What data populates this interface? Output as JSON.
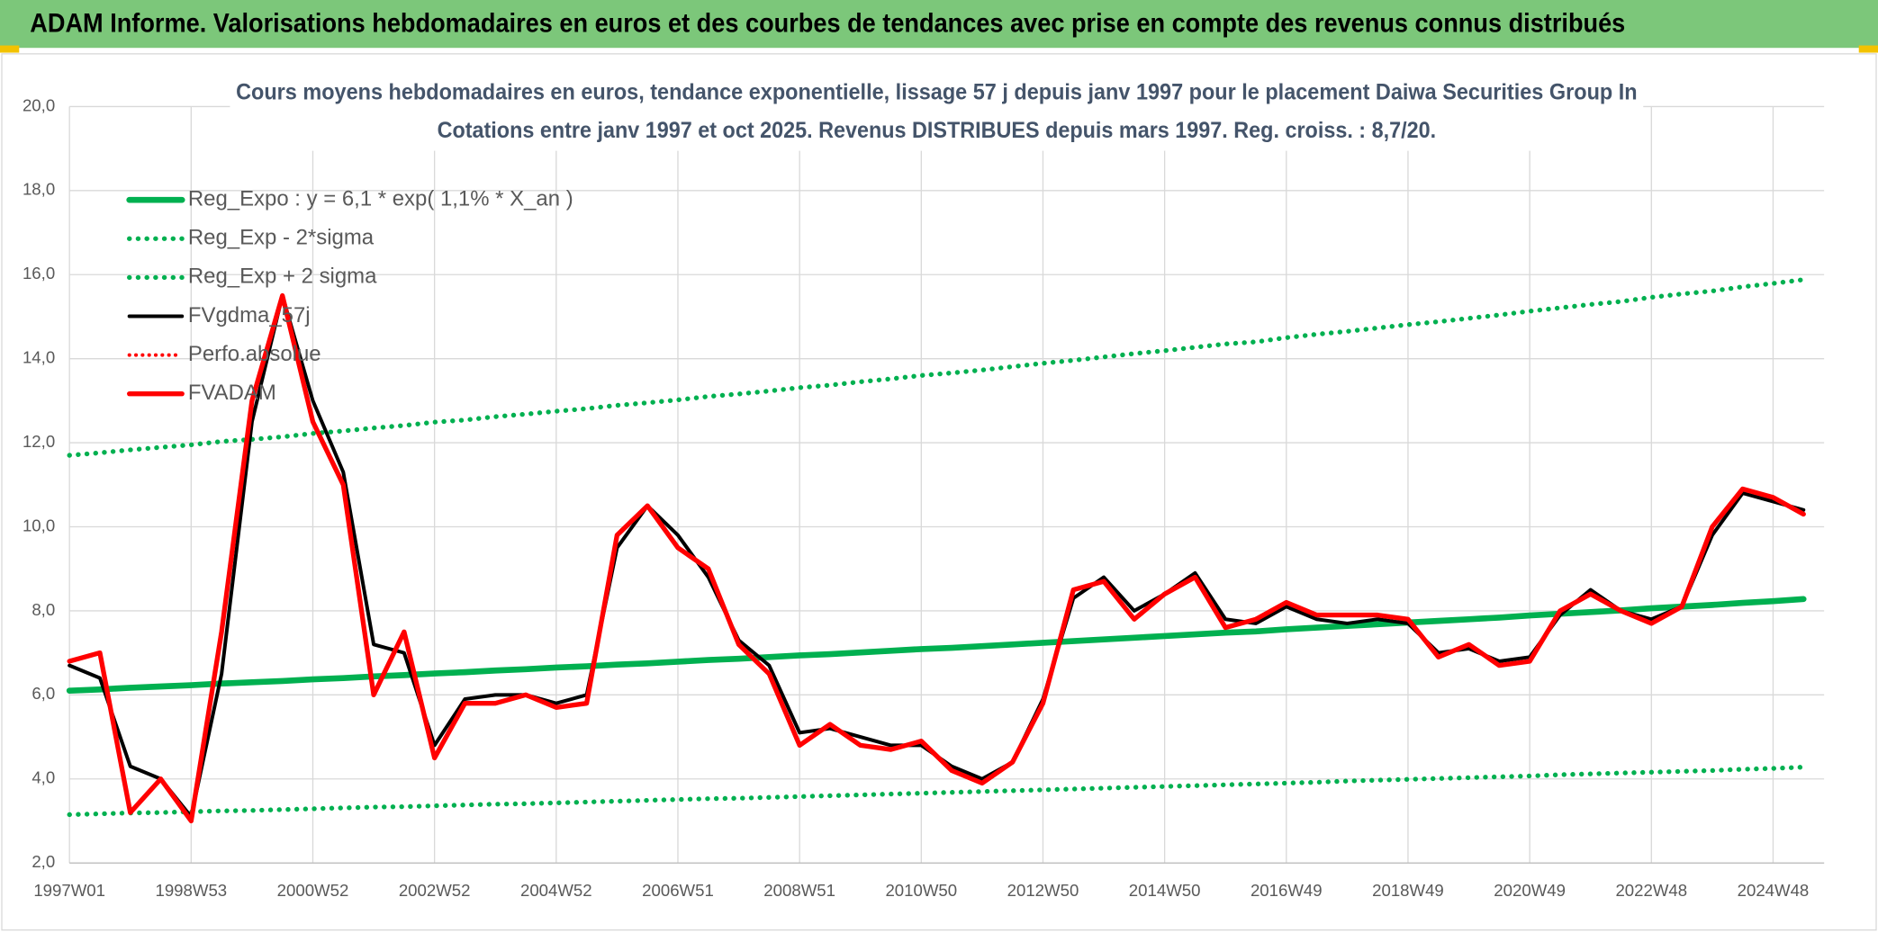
{
  "header": {
    "title": "ADAM Informe. Valorisations hebdomadaires en euros et des courbes de tendances avec prise en compte des revenus connus distribués"
  },
  "chart_data": {
    "type": "line",
    "title": "Cours moyens hebdomadaires en euros, tendance exponentielle, lissage 57 j depuis janv 1997 pour le placement Daiwa Securities Group In",
    "subtitle": "Cotations entre janv 1997 et oct 2025. Revenus DISTRIBUES depuis mars 1997. Reg. croiss. : 8,7/20.",
    "categories": [
      "1997W01",
      null,
      null,
      null,
      "1998W53",
      null,
      null,
      null,
      "2000W52",
      null,
      null,
      null,
      "2002W52",
      null,
      null,
      null,
      "2004W52",
      null,
      null,
      null,
      "2006W51",
      null,
      null,
      null,
      "2008W51",
      null,
      null,
      null,
      "2010W50",
      null,
      null,
      null,
      "2012W50",
      null,
      null,
      null,
      "2014W50",
      null,
      null,
      null,
      "2016W49",
      null,
      null,
      null,
      "2018W49",
      null,
      null,
      null,
      "2020W49",
      null,
      null,
      null,
      "2022W48",
      null,
      null,
      null,
      "2024W48",
      null
    ],
    "ylim": [
      2,
      20
    ],
    "yticks": [
      {
        "value": 2,
        "label": "2,0"
      },
      {
        "value": 4,
        "label": "4,0"
      },
      {
        "value": 6,
        "label": "6,0"
      },
      {
        "value": 8,
        "label": "8,0"
      },
      {
        "value": 10,
        "label": "10,0"
      },
      {
        "value": 12,
        "label": "12,0"
      },
      {
        "value": 14,
        "label": "14,0"
      },
      {
        "value": 16,
        "label": "16,0"
      },
      {
        "value": 18,
        "label": "18,0"
      },
      {
        "value": 20,
        "label": "20,0"
      }
    ],
    "grid": true,
    "legend": "top-left",
    "series": [
      {
        "name": "Reg_Expo : y = 6,1 * exp( 1,1% *  X_an )",
        "color": "#00b050",
        "style": "solid",
        "width": 5,
        "values": [
          6.1,
          6.13,
          6.17,
          6.2,
          6.23,
          6.27,
          6.3,
          6.33,
          6.37,
          6.4,
          6.44,
          6.47,
          6.51,
          6.54,
          6.58,
          6.61,
          6.65,
          6.68,
          6.72,
          6.75,
          6.79,
          6.83,
          6.86,
          6.9,
          6.94,
          6.97,
          7.01,
          7.05,
          7.09,
          7.12,
          7.16,
          7.2,
          7.24,
          7.28,
          7.32,
          7.36,
          7.4,
          7.44,
          7.48,
          7.51,
          7.56,
          7.6,
          7.64,
          7.68,
          7.72,
          7.76,
          7.8,
          7.84,
          7.89,
          7.93,
          7.97,
          8.01,
          8.06,
          8.1,
          8.14,
          8.19,
          8.23,
          8.28
        ]
      },
      {
        "name": "Reg_Exp - 2*sigma",
        "color": "#00b050",
        "style": "dotted",
        "width": 4,
        "values": [
          3.15,
          3.17,
          3.19,
          3.2,
          3.22,
          3.24,
          3.25,
          3.27,
          3.29,
          3.31,
          3.33,
          3.34,
          3.36,
          3.38,
          3.4,
          3.41,
          3.43,
          3.45,
          3.47,
          3.49,
          3.51,
          3.53,
          3.54,
          3.56,
          3.58,
          3.6,
          3.62,
          3.64,
          3.66,
          3.68,
          3.7,
          3.72,
          3.74,
          3.76,
          3.78,
          3.8,
          3.82,
          3.84,
          3.86,
          3.88,
          3.9,
          3.92,
          3.95,
          3.97,
          3.99,
          4.01,
          4.03,
          4.05,
          4.07,
          4.1,
          4.12,
          4.14,
          4.16,
          4.18,
          4.2,
          4.23,
          4.25,
          4.28
        ]
      },
      {
        "name": "Reg_Exp + 2 sigma",
        "color": "#00b050",
        "style": "dotted",
        "width": 4,
        "values": [
          11.7,
          11.76,
          11.83,
          11.89,
          11.95,
          12.03,
          12.08,
          12.14,
          12.22,
          12.28,
          12.35,
          12.41,
          12.49,
          12.54,
          12.62,
          12.68,
          12.75,
          12.81,
          12.89,
          12.95,
          13.02,
          13.1,
          13.16,
          13.23,
          13.31,
          13.37,
          13.45,
          13.52,
          13.6,
          13.66,
          13.73,
          13.81,
          13.89,
          13.96,
          14.04,
          14.12,
          14.19,
          14.27,
          14.35,
          14.4,
          14.5,
          14.58,
          14.65,
          14.73,
          14.81,
          14.88,
          14.96,
          15.04,
          15.13,
          15.21,
          15.29,
          15.36,
          15.46,
          15.54,
          15.61,
          15.71,
          15.79,
          15.88
        ]
      },
      {
        "name": "FVgdma_57j",
        "color": "#000000",
        "style": "solid",
        "width": 3,
        "values": [
          6.7,
          6.4,
          4.3,
          4.0,
          3.1,
          6.5,
          12.5,
          15.5,
          13.0,
          11.3,
          7.2,
          7.0,
          4.8,
          5.9,
          6.0,
          6.0,
          5.8,
          6.0,
          9.5,
          10.5,
          9.8,
          8.8,
          7.3,
          6.7,
          5.1,
          5.2,
          5.0,
          4.8,
          4.8,
          4.3,
          4.0,
          4.4,
          5.9,
          8.3,
          8.8,
          8.0,
          8.4,
          8.9,
          7.8,
          7.7,
          8.1,
          7.8,
          7.7,
          7.8,
          7.7,
          7.0,
          7.1,
          6.8,
          6.9,
          7.9,
          8.5,
          8.0,
          7.8,
          8.1,
          9.8,
          10.8,
          10.6,
          10.4
        ]
      },
      {
        "name": "Perfo.absolue",
        "color": "#ff0000",
        "style": "dotted",
        "width": 3,
        "values": [
          null,
          null,
          null,
          null,
          null,
          null,
          null,
          null,
          null,
          null,
          null,
          null,
          null,
          null,
          null,
          null,
          null,
          null,
          null,
          null,
          null,
          null,
          null,
          null,
          null,
          null,
          null,
          null,
          null,
          null,
          null,
          null,
          null,
          null,
          null,
          null,
          null,
          null,
          null,
          null,
          null,
          null,
          null,
          null,
          null,
          null,
          null,
          null,
          null,
          null,
          null,
          null,
          null,
          null,
          null,
          null,
          null,
          null
        ]
      },
      {
        "name": "FVADAM",
        "color": "#ff0000",
        "style": "solid",
        "width": 4,
        "values": [
          6.8,
          7.0,
          3.2,
          4.0,
          3.0,
          7.5,
          13.0,
          15.5,
          12.5,
          11.0,
          6.0,
          7.5,
          4.5,
          5.8,
          5.8,
          6.0,
          5.7,
          5.8,
          9.8,
          10.5,
          9.5,
          9.0,
          7.2,
          6.5,
          4.8,
          5.3,
          4.8,
          4.7,
          4.9,
          4.2,
          3.9,
          4.4,
          5.8,
          8.5,
          8.7,
          7.8,
          8.4,
          8.8,
          7.6,
          7.8,
          8.2,
          7.9,
          7.9,
          7.9,
          7.8,
          6.9,
          7.2,
          6.7,
          6.8,
          8.0,
          8.4,
          8.0,
          7.7,
          8.1,
          10.0,
          10.9,
          10.7,
          10.3
        ]
      }
    ]
  }
}
